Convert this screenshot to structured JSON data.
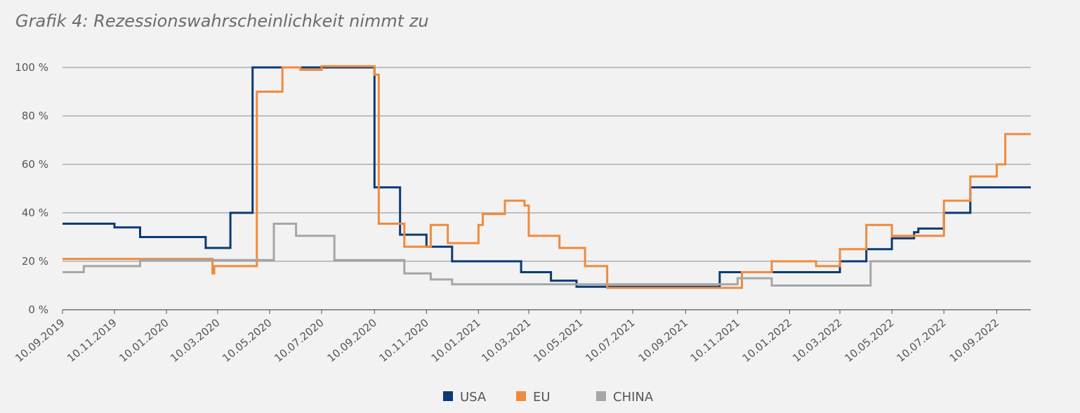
{
  "chart_data": {
    "type": "line",
    "title": "Grafik 4: Rezessionswahrscheinlichkeit nimmt zu",
    "xlabel": "",
    "ylabel": "",
    "y_unit_suffix": " %",
    "ylim": [
      0,
      100
    ],
    "y_ticks": [
      0,
      20,
      40,
      60,
      80,
      100
    ],
    "x_range": [
      "2019-09-10",
      "2022-10-20"
    ],
    "x_ticks": [
      "10.09.2019",
      "10.11.2019",
      "10.01.2020",
      "10.03.2020",
      "10.05.2020",
      "10.07.2020",
      "10.09.2020",
      "10.11.2020",
      "10.01.2021",
      "10.03.2021",
      "10.05.2021",
      "10.07.2021",
      "10.09.2021",
      "10.11.2021",
      "10.01.2022",
      "10.03.2022",
      "10.05.2022",
      "10.07.2022",
      "10.09.2022"
    ],
    "grid": "horizontal",
    "legend_position": "bottom-center",
    "step": true,
    "series": [
      {
        "name": "USA",
        "color": "#0b3a74",
        "points": [
          [
            "2019-09-10",
            35.5
          ],
          [
            "2019-11-10",
            34
          ],
          [
            "2019-12-10",
            30
          ],
          [
            "2020-02-25",
            25.5
          ],
          [
            "2020-03-25",
            40
          ],
          [
            "2020-04-20",
            100
          ],
          [
            "2020-09-10",
            50.5
          ],
          [
            "2020-10-10",
            31
          ],
          [
            "2020-11-10",
            26
          ],
          [
            "2020-12-10",
            20
          ],
          [
            "2021-03-01",
            15.5
          ],
          [
            "2021-04-05",
            12
          ],
          [
            "2021-05-05",
            9.5
          ],
          [
            "2021-10-20",
            15.5
          ],
          [
            "2022-03-10",
            20
          ],
          [
            "2022-04-10",
            25
          ],
          [
            "2022-05-10",
            29.5
          ],
          [
            "2022-06-05",
            32
          ],
          [
            "2022-06-10",
            33.5
          ],
          [
            "2022-07-10",
            40
          ],
          [
            "2022-08-10",
            50.5
          ],
          [
            "2022-10-20",
            50.5
          ]
        ]
      },
      {
        "name": "EU",
        "color": "#f08a3c",
        "points": [
          [
            "2019-09-10",
            21
          ],
          [
            "2020-03-01",
            21
          ],
          [
            "2020-03-04",
            15
          ],
          [
            "2020-03-06",
            18
          ],
          [
            "2020-04-25",
            90
          ],
          [
            "2020-05-25",
            100
          ],
          [
            "2020-06-15",
            99
          ],
          [
            "2020-07-10",
            100.5
          ],
          [
            "2020-09-10",
            97
          ],
          [
            "2020-09-15",
            35.5
          ],
          [
            "2020-10-15",
            26
          ],
          [
            "2020-11-15",
            35
          ],
          [
            "2020-12-05",
            27.5
          ],
          [
            "2021-01-10",
            35
          ],
          [
            "2021-01-15",
            39.5
          ],
          [
            "2021-02-10",
            45
          ],
          [
            "2021-03-05",
            43
          ],
          [
            "2021-03-10",
            30.5
          ],
          [
            "2021-04-15",
            25.5
          ],
          [
            "2021-05-15",
            18
          ],
          [
            "2021-06-10",
            9
          ],
          [
            "2021-11-15",
            15.5
          ],
          [
            "2021-12-20",
            20
          ],
          [
            "2022-02-10",
            18
          ],
          [
            "2022-03-10",
            25
          ],
          [
            "2022-04-10",
            35
          ],
          [
            "2022-05-10",
            30.5
          ],
          [
            "2022-07-10",
            45
          ],
          [
            "2022-08-10",
            55
          ],
          [
            "2022-09-10",
            60
          ],
          [
            "2022-09-20",
            72.5
          ],
          [
            "2022-10-20",
            72.5
          ]
        ]
      },
      {
        "name": "CHINA",
        "color": "#a6a6a6",
        "points": [
          [
            "2019-09-10",
            15.5
          ],
          [
            "2019-10-05",
            18
          ],
          [
            "2019-12-10",
            20.5
          ],
          [
            "2020-05-10",
            20.5
          ],
          [
            "2020-05-15",
            35.5
          ],
          [
            "2020-06-10",
            30.5
          ],
          [
            "2020-07-25",
            20.5
          ],
          [
            "2020-10-15",
            15
          ],
          [
            "2020-11-15",
            12.5
          ],
          [
            "2020-12-10",
            10.5
          ],
          [
            "2021-06-10",
            10.5
          ],
          [
            "2021-11-10",
            13
          ],
          [
            "2021-12-20",
            10
          ],
          [
            "2022-04-15",
            20
          ],
          [
            "2022-10-20",
            20
          ]
        ]
      }
    ]
  }
}
